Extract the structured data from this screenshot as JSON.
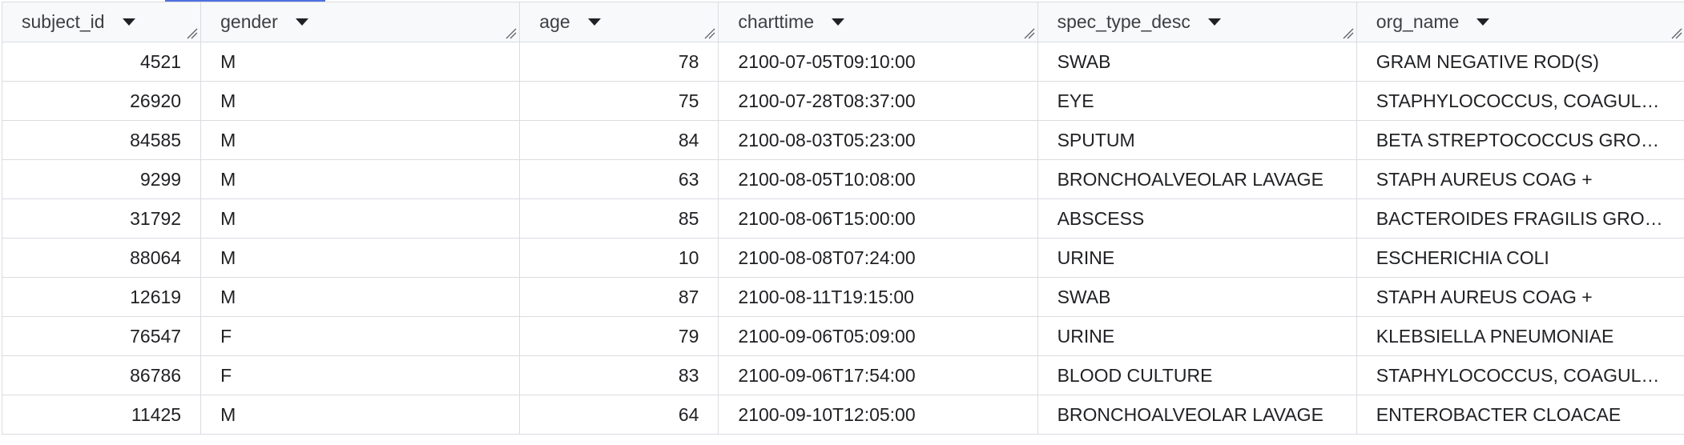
{
  "columns": [
    {
      "label": "subject_id",
      "align": "num"
    },
    {
      "label": "gender",
      "align": "txt"
    },
    {
      "label": "age",
      "align": "num"
    },
    {
      "label": "charttime",
      "align": "txt"
    },
    {
      "label": "spec_type_desc",
      "align": "txt"
    },
    {
      "label": "org_name",
      "align": "txt"
    }
  ],
  "rows": [
    [
      "4521",
      "M",
      "78",
      "2100-07-05T09:10:00",
      "SWAB",
      "GRAM NEGATIVE ROD(S)"
    ],
    [
      "26920",
      "M",
      "75",
      "2100-07-28T08:37:00",
      "EYE",
      "STAPHYLOCOCCUS, COAGULASE NEGATIVE"
    ],
    [
      "84585",
      "M",
      "84",
      "2100-08-03T05:23:00",
      "SPUTUM",
      "BETA STREPTOCOCCUS GROUP B"
    ],
    [
      "9299",
      "M",
      "63",
      "2100-08-05T10:08:00",
      "BRONCHOALVEOLAR LAVAGE",
      "STAPH AUREUS COAG +"
    ],
    [
      "31792",
      "M",
      "85",
      "2100-08-06T15:00:00",
      "ABSCESS",
      "BACTEROIDES FRAGILIS GROUP"
    ],
    [
      "88064",
      "M",
      "10",
      "2100-08-08T07:24:00",
      "URINE",
      "ESCHERICHIA COLI"
    ],
    [
      "12619",
      "M",
      "87",
      "2100-08-11T19:15:00",
      "SWAB",
      "STAPH AUREUS COAG +"
    ],
    [
      "76547",
      "F",
      "79",
      "2100-09-06T05:09:00",
      "URINE",
      "KLEBSIELLA PNEUMONIAE"
    ],
    [
      "86786",
      "F",
      "83",
      "2100-09-06T17:54:00",
      "BLOOD CULTURE",
      "STAPHYLOCOCCUS, COAGULASE NEGATIVE"
    ],
    [
      "11425",
      "M",
      "64",
      "2100-09-10T12:05:00",
      "BRONCHOALVEOLAR LAVAGE",
      "ENTEROBACTER CLOACAE"
    ]
  ],
  "icons": {
    "sort": "sort-down-icon",
    "resize": "column-resize-icon"
  },
  "colors": {
    "accent": "#4f6fe0",
    "header_bg": "#f8f9fa",
    "border": "#dadce0"
  }
}
